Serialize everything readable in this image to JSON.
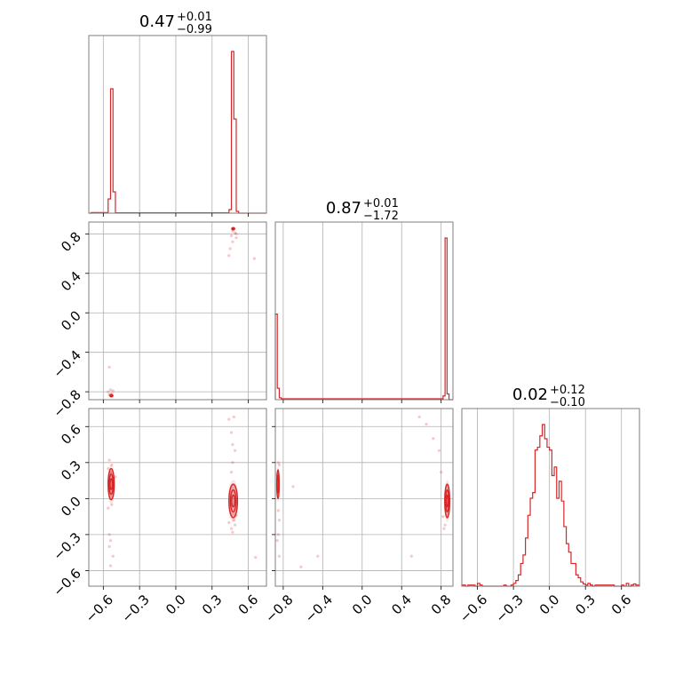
{
  "chart_data": {
    "type": "corner",
    "color": "#d62728",
    "parameters": [
      {
        "title_main": "0.47",
        "title_plus": "+0.01",
        "title_minus": "−0.99",
        "range": [
          -0.72,
          0.75
        ],
        "ticks": [
          -0.6,
          -0.3,
          0.0,
          0.3,
          0.6
        ],
        "tick_labels": [
          "−0.6",
          "−0.3",
          "0.0",
          "0.3",
          "0.6"
        ],
        "hist": {
          "edges": [
            -0.72,
            -0.7,
            -0.58,
            -0.56,
            -0.54,
            -0.52,
            -0.5,
            0.44,
            0.46,
            0.48,
            0.5,
            0.52,
            0.75
          ],
          "counts": [
            0,
            0.003,
            0.003,
            0.08,
            0.7,
            0.12,
            0.002,
            0.02,
            0.91,
            0.53,
            0.01,
            0
          ]
        }
      },
      {
        "title_main": "0.87",
        "title_plus": "+0.01",
        "title_minus": "−1.72",
        "range": [
          -0.88,
          0.92
        ],
        "ticks": [
          -0.8,
          -0.4,
          0.0,
          0.4,
          0.8
        ],
        "tick_labels": [
          "−0.8",
          "−0.4",
          "0.0",
          "0.4",
          "0.8"
        ],
        "hist": {
          "edges": [
            -0.88,
            -0.86,
            -0.84,
            -0.82,
            0.82,
            0.84,
            0.86,
            0.88,
            0.92
          ],
          "counts": [
            0.45,
            0.06,
            0.01,
            0.005,
            0.02,
            0.85,
            0.03,
            0
          ]
        }
      },
      {
        "title_main": "0.02",
        "title_plus": "+0.12",
        "title_minus": "−0.10",
        "range": [
          -0.73,
          0.75
        ],
        "ticks": [
          -0.6,
          -0.3,
          0.0,
          0.3,
          0.6
        ],
        "tick_labels": [
          "−0.6",
          "−0.3",
          "0.0",
          "0.3",
          "0.6"
        ],
        "hist": {
          "edges": [
            -0.73,
            -0.7,
            -0.68,
            -0.62,
            -0.6,
            -0.58,
            -0.56,
            -0.38,
            -0.36,
            -0.32,
            -0.3,
            -0.28,
            -0.26,
            -0.24,
            -0.22,
            -0.2,
            -0.18,
            -0.16,
            -0.14,
            -0.12,
            -0.1,
            -0.08,
            -0.06,
            -0.04,
            -0.02,
            0.0,
            0.02,
            0.04,
            0.06,
            0.08,
            0.1,
            0.12,
            0.14,
            0.16,
            0.18,
            0.2,
            0.22,
            0.24,
            0.26,
            0.28,
            0.3,
            0.32,
            0.34,
            0.36,
            0.38,
            0.54,
            0.6,
            0.62,
            0.64,
            0.66,
            0.68,
            0.7,
            0.72,
            0.75
          ],
          "counts": [
            0.004,
            0,
            0.004,
            0,
            0.01,
            0.004,
            0,
            0.004,
            0,
            0.004,
            0.01,
            0.02,
            0.04,
            0.08,
            0.11,
            0.17,
            0.25,
            0.31,
            0.33,
            0.48,
            0.49,
            0.53,
            0.57,
            0.52,
            0.49,
            0.48,
            0.39,
            0.42,
            0.31,
            0.37,
            0.3,
            0.21,
            0.15,
            0.12,
            0.08,
            0.08,
            0.04,
            0.03,
            0.015,
            0.008,
            0.004,
            0.01,
            0.004,
            0,
            0.004,
            0,
            0.004,
            0,
            0.01,
            0,
            0.004,
            0.008,
            0.004
          ]
        }
      }
    ],
    "pairs": [
      {
        "x_param": 0,
        "y_param": 1,
        "points": [
          [
            -0.55,
            -0.55
          ],
          [
            -0.53,
            -0.82
          ],
          [
            -0.545,
            -0.83
          ],
          [
            -0.56,
            -0.8
          ],
          [
            -0.52,
            -0.79
          ],
          [
            -0.535,
            -0.84
          ],
          [
            -0.55,
            -0.83
          ],
          [
            -0.54,
            -0.78
          ],
          [
            0.47,
            0.83
          ],
          [
            0.49,
            0.81
          ],
          [
            0.5,
            0.8
          ],
          [
            0.48,
            0.85
          ],
          [
            0.46,
            0.78
          ],
          [
            0.47,
            0.72
          ],
          [
            0.45,
            0.65
          ],
          [
            0.44,
            0.58
          ],
          [
            0.5,
            0.76
          ],
          [
            0.65,
            0.55
          ]
        ],
        "modes": [
          {
            "cx": -0.533,
            "cy": -0.84,
            "rx": 0.012,
            "ry": 0.012,
            "levels": [
              1.0,
              0.6,
              0.3
            ]
          },
          {
            "cx": 0.475,
            "cy": 0.852,
            "rx": 0.012,
            "ry": 0.012,
            "levels": [
              1.0,
              0.6,
              0.3
            ]
          }
        ]
      },
      {
        "x_param": 0,
        "y_param": 2,
        "points": [
          [
            -0.55,
            0.32
          ],
          [
            -0.53,
            0.28
          ],
          [
            -0.56,
            0.25
          ],
          [
            -0.54,
            0.22
          ],
          [
            -0.53,
            -0.05
          ],
          [
            -0.56,
            -0.08
          ],
          [
            -0.55,
            -0.3
          ],
          [
            -0.54,
            -0.35
          ],
          [
            -0.55,
            -0.4
          ],
          [
            -0.54,
            -0.56
          ],
          [
            -0.52,
            -0.48
          ],
          [
            -0.5,
            0.18
          ],
          [
            0.44,
            0.66
          ],
          [
            0.48,
            0.68
          ],
          [
            0.46,
            0.55
          ],
          [
            0.47,
            0.45
          ],
          [
            0.49,
            0.4
          ],
          [
            0.47,
            0.3
          ],
          [
            0.46,
            0.22
          ],
          [
            0.48,
            -0.18
          ],
          [
            0.49,
            -0.22
          ],
          [
            0.46,
            -0.25
          ],
          [
            0.47,
            -0.28
          ],
          [
            0.44,
            -0.2
          ],
          [
            0.5,
            -0.14
          ],
          [
            0.66,
            -0.49
          ]
        ],
        "modes": [
          {
            "cx": -0.535,
            "cy": 0.12,
            "rx": 0.025,
            "ry": 0.13,
            "levels": [
              1.0,
              0.65,
              0.35
            ]
          },
          {
            "cx": 0.475,
            "cy": -0.02,
            "rx": 0.035,
            "ry": 0.14,
            "levels": [
              1.0,
              0.65,
              0.35
            ]
          }
        ]
      },
      {
        "x_param": 1,
        "y_param": 2,
        "points": [
          [
            -0.85,
            0.3
          ],
          [
            -0.84,
            0.28
          ],
          [
            -0.86,
            0.2
          ],
          [
            -0.85,
            -0.1
          ],
          [
            -0.84,
            -0.18
          ],
          [
            -0.85,
            -0.3
          ],
          [
            -0.84,
            -0.48
          ],
          [
            -0.86,
            -0.35
          ],
          [
            -0.7,
            0.1
          ],
          [
            -0.62,
            -0.57
          ],
          [
            -0.45,
            -0.48
          ],
          [
            0.5,
            -0.48
          ],
          [
            0.58,
            0.68
          ],
          [
            0.65,
            0.62
          ],
          [
            0.72,
            0.5
          ],
          [
            0.78,
            0.4
          ],
          [
            0.8,
            0.22
          ],
          [
            0.82,
            -0.15
          ],
          [
            0.83,
            -0.25
          ],
          [
            0.84,
            -0.22
          ]
        ],
        "modes": [
          {
            "cx": -0.853,
            "cy": 0.12,
            "rx": 0.012,
            "ry": 0.12,
            "levels": [
              1.0,
              0.6
            ]
          },
          {
            "cx": 0.862,
            "cy": -0.02,
            "rx": 0.025,
            "ry": 0.14,
            "levels": [
              1.0,
              0.65,
              0.35
            ]
          }
        ]
      }
    ]
  }
}
